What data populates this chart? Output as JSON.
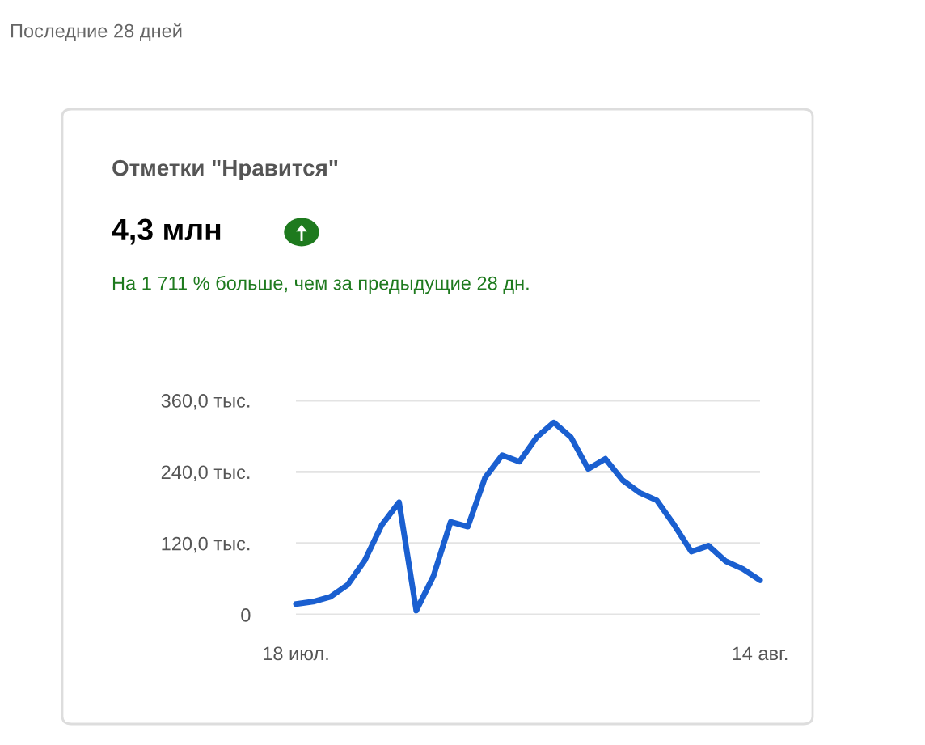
{
  "chart_data": {
    "type": "line",
    "title": "Отметки \"Нравится\"",
    "subtitle": "4,3 млн",
    "annotations": [
      "Последние 28 дней",
      "На 1 711 % больше, чем за предыдущие 28 дн."
    ],
    "categories": [
      "18 июл.",
      null,
      null,
      null,
      null,
      null,
      null,
      null,
      null,
      null,
      null,
      null,
      null,
      null,
      null,
      null,
      null,
      null,
      null,
      null,
      null,
      null,
      null,
      null,
      null,
      null,
      null,
      "14 авг."
    ],
    "series": [
      {
        "color": "#1a5fd0",
        "values": [
          18,
          22,
          30,
          50,
          91,
          151,
          189,
          7,
          65,
          156,
          148,
          230,
          268,
          257,
          298,
          323,
          298,
          245,
          262,
          226,
          205,
          192,
          151,
          106,
          116,
          90,
          77,
          58
        ]
      }
    ],
    "ylim": [
      0,
      360
    ],
    "yticks": [
      {
        "value": 0,
        "label": "0"
      },
      {
        "value": 120,
        "label": "120,0 тыс."
      },
      {
        "value": 240,
        "label": "240,0 тыс."
      },
      {
        "value": 360,
        "label": "360,0 тыс."
      }
    ],
    "grid": "y",
    "marker": "none",
    "line_style": "solid"
  }
}
